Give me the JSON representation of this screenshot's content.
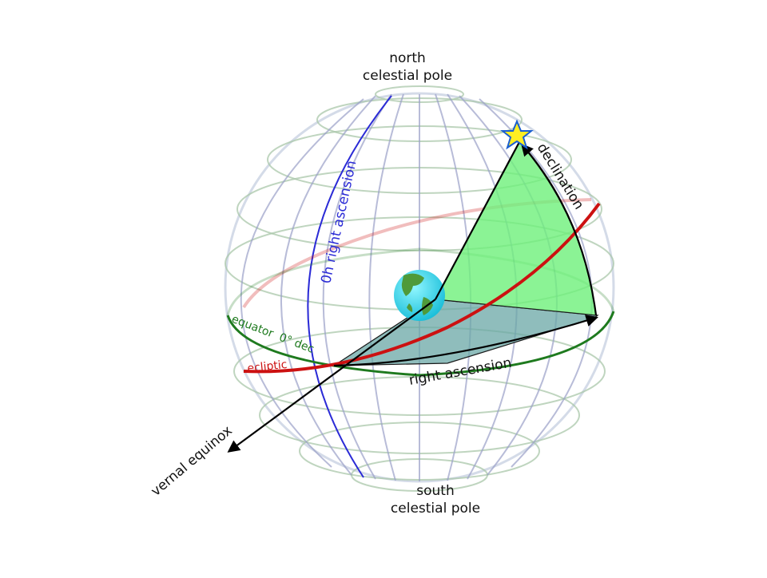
{
  "labels": {
    "north_pole_line1": "north",
    "north_pole_line2": "celestial pole",
    "south_pole_line1": "south",
    "south_pole_line2": "celestial pole",
    "zero_h_ra": "0h right ascension",
    "declination": "declination",
    "equator": "equator  0° dec",
    "ecliptic": "ecliptic",
    "right_ascension": "right ascension",
    "vernal_equinox": "vernal equinox"
  },
  "colors": {
    "grid_meridian": "#9aa0c8",
    "grid_parallel": "#a9c7a9",
    "zero_h_meridian": "#2b2bd6",
    "equator": "#1e7a1e",
    "ecliptic": "#cc1111",
    "declination_wedge": "#6ef07a",
    "ra_wedge": "#6aa7a5",
    "star_fill": "#ffee22",
    "star_stroke": "#1a5fd0",
    "earth_ocean": "#2fd8ee",
    "earth_land": "#4f9a3a"
  },
  "icons": {
    "star": "star-icon",
    "earth": "earth-globe-icon"
  }
}
